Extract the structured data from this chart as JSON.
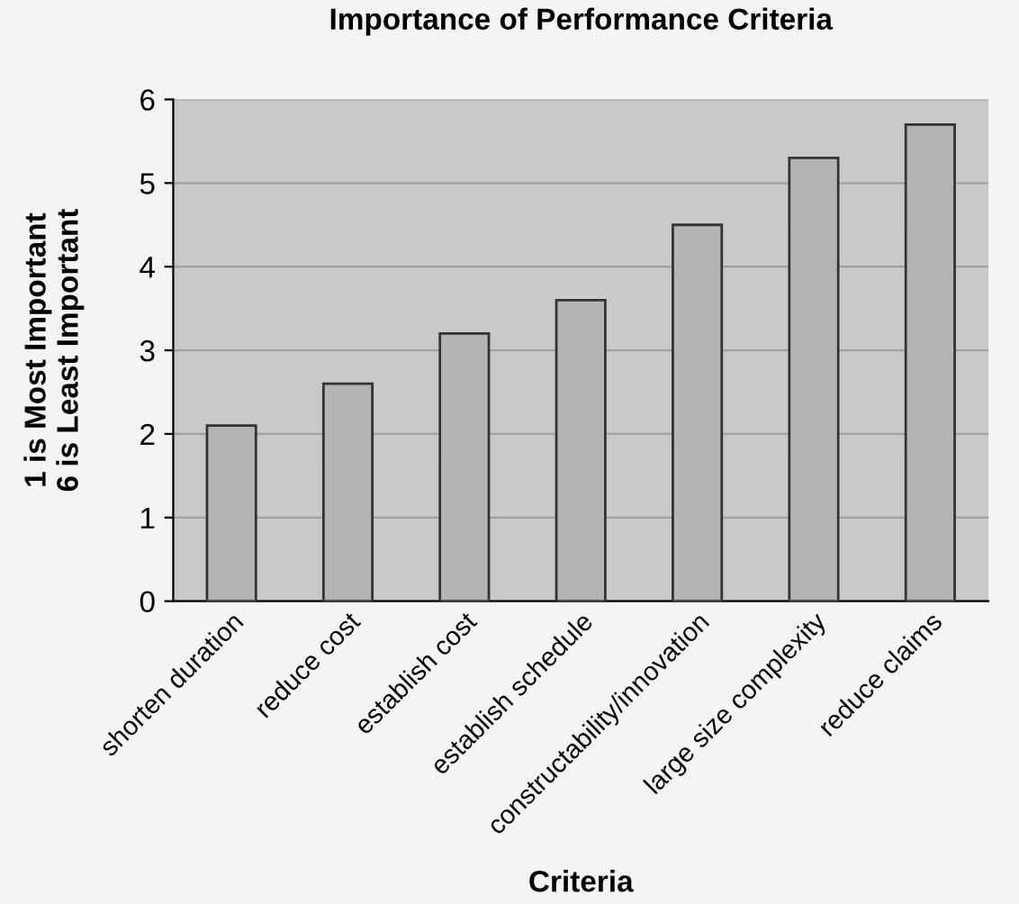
{
  "chart_data": {
    "type": "bar",
    "title": "Importance of Performance Criteria",
    "xlabel": "Criteria",
    "ylabel": "1 is Most Important\n6 is Least Important",
    "categories": [
      "shorten duration",
      "reduce cost",
      "establish cost",
      "establish schedule",
      "constructability/innovation",
      "large size complexity",
      "reduce claims"
    ],
    "values": [
      2.1,
      2.6,
      3.2,
      3.6,
      4.5,
      5.3,
      5.7
    ],
    "color": "#b4b4b4",
    "ylim": [
      0,
      6
    ],
    "yticks": [
      0,
      1,
      2,
      3,
      4,
      5,
      6
    ],
    "grid": "y"
  }
}
